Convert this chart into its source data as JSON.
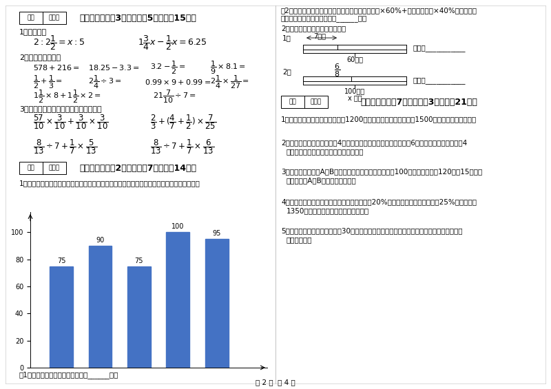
{
  "background_color": "#ffffff",
  "page_width": 8.0,
  "page_height": 5.65,
  "dpi": 100,
  "bar_values": [
    75,
    90,
    75,
    100,
    95
  ],
  "bar_color": "#4472c4",
  "bar_yticks": [
    0,
    20,
    40,
    60,
    80,
    100
  ]
}
